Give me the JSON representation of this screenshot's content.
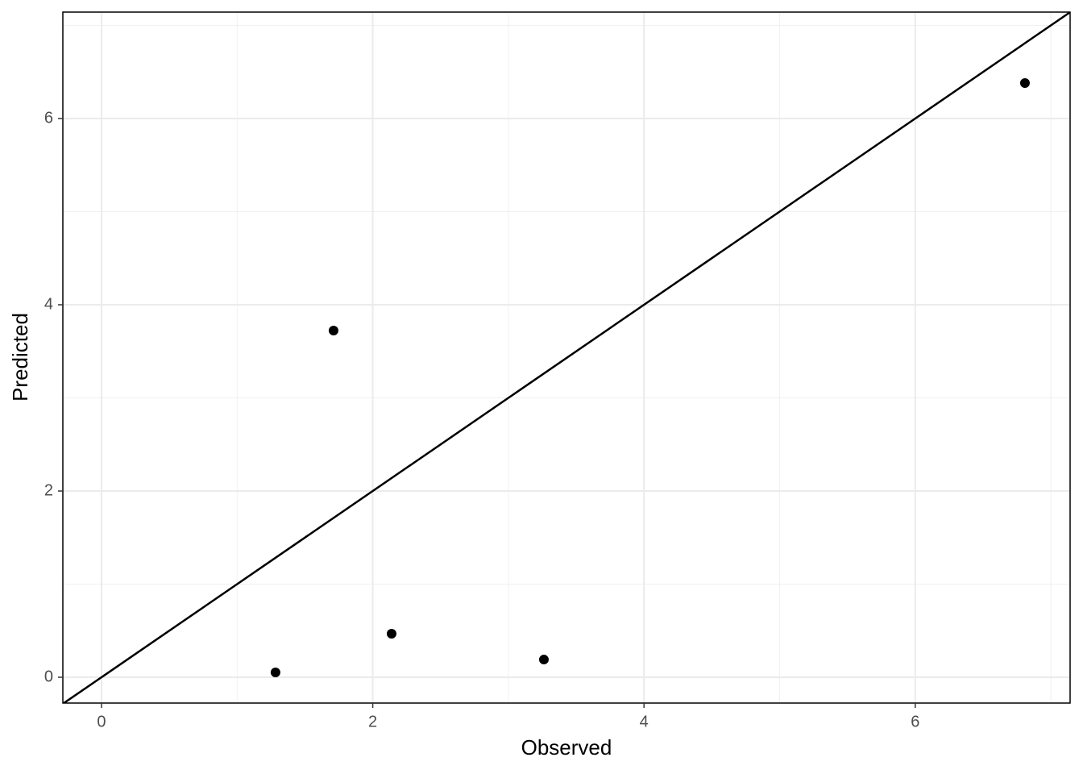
{
  "chart_data": {
    "type": "scatter",
    "x_label": "Observed",
    "y_label": "Predicted",
    "x": [
      1.283,
      1.711,
      2.139,
      3.262,
      6.809
    ],
    "values": [
      0.052,
      3.723,
      0.468,
      0.19,
      6.381
    ],
    "color": "#000000",
    "xlim": [
      -0.285,
      7.142
    ],
    "ylim": [
      -0.277,
      7.143
    ],
    "xticks": [
      0,
      2,
      4,
      6
    ],
    "yticks": [
      0,
      2,
      4,
      6
    ],
    "xminor": [
      1,
      3,
      5,
      7
    ],
    "yminor": [
      1,
      3,
      5,
      7
    ],
    "grid": true,
    "abline": {
      "slope": 1,
      "intercept": 0
    }
  }
}
